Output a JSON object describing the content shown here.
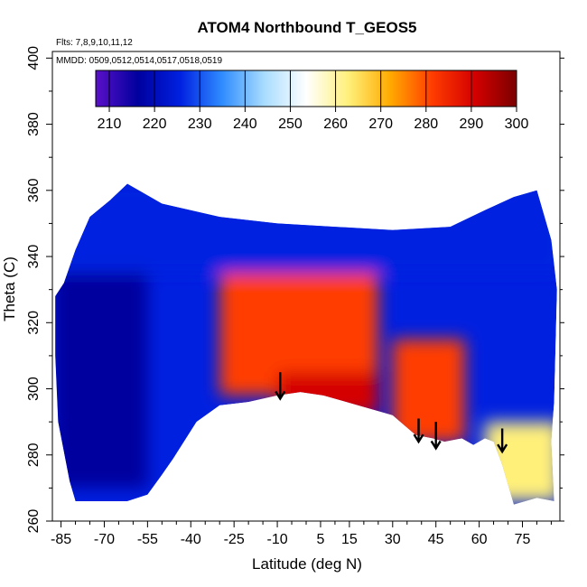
{
  "chart_data": {
    "type": "heatmap",
    "title": "ATOM4 Northbound T_GEOS5",
    "annotations": [
      "Flts: 7,8,9,10,11,12",
      "MMDD: 0509,0512,0514,0517,0518,0519"
    ],
    "xlabel": "Latitude (deg N)",
    "ylabel": "Theta (C)",
    "xlim": [
      -88,
      88
    ],
    "ylim": [
      260,
      402
    ],
    "x_ticks": [
      -85,
      -70,
      -55,
      -40,
      -25,
      -10,
      5,
      15,
      30,
      45,
      60,
      75
    ],
    "y_ticks": [
      260,
      280,
      300,
      320,
      340,
      360,
      380,
      400
    ],
    "colorbar": {
      "label_values": [
        210,
        220,
        230,
        240,
        250,
        260,
        270,
        280,
        290,
        300
      ],
      "range": [
        207,
        300
      ],
      "colors": [
        "#5a10c8",
        "#00009e",
        "#0020e0",
        "#2f8cff",
        "#a8dcff",
        "#ffffff",
        "#fff07a",
        "#ffaa00",
        "#ff3c00",
        "#d40000",
        "#7a0000"
      ]
    },
    "field_regions": [
      {
        "name": "polar-south",
        "x_range": [
          -88,
          -55
        ],
        "theta_range": [
          270,
          358
        ],
        "temperature": 218
      },
      {
        "name": "tropics-core",
        "x_range": [
          -30,
          25
        ],
        "theta_range": [
          298,
          335
        ],
        "temperature": 280
      },
      {
        "name": "tropical-warm-base",
        "x_range": [
          -10,
          25
        ],
        "theta_range": [
          292,
          305
        ],
        "temperature": 295
      },
      {
        "name": "north-midlat",
        "x_range": [
          30,
          55
        ],
        "theta_range": [
          284,
          315
        ],
        "temperature": 285
      },
      {
        "name": "upper-layer",
        "x_range": [
          -88,
          88
        ],
        "theta_range": [
          335,
          362
        ],
        "temperature": 228
      },
      {
        "name": "arctic-surface",
        "x_range": [
          62,
          88
        ],
        "theta_range": [
          266,
          290
        ],
        "temperature": 262
      }
    ],
    "arrows": [
      {
        "x": -9,
        "theta_tail": 305,
        "theta_head": 297
      },
      {
        "x": 39,
        "theta_tail": 291,
        "theta_head": 284
      },
      {
        "x": 45,
        "theta_tail": 290,
        "theta_head": 282
      },
      {
        "x": 68,
        "theta_tail": 288,
        "theta_head": 281
      }
    ],
    "grid": false
  }
}
